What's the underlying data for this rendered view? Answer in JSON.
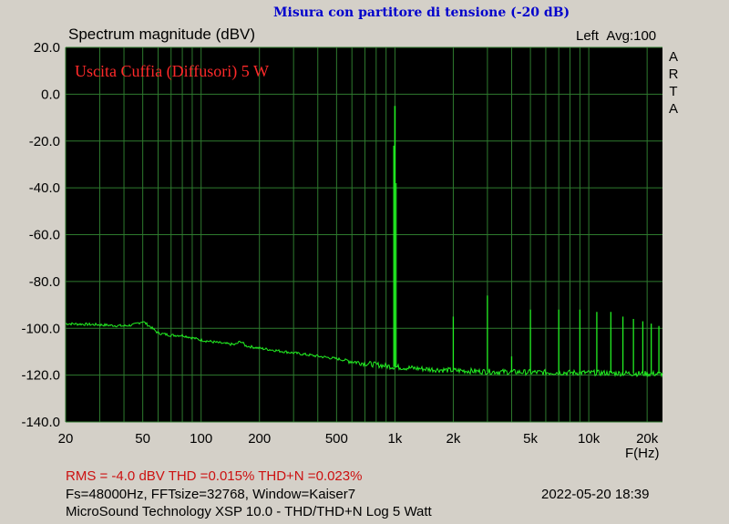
{
  "header": {
    "title": "Misura con partitore di tensione (-20 dB)",
    "y_axis_title": "Spectrum magnitude (dBV)",
    "channel": "Left",
    "averaging": "Avg:100",
    "brand_vertical": "ARTA"
  },
  "legend_text": "Uscita Cuffia (Diffusori) 5 W",
  "footer": {
    "measurements": "RMS =   -4.0 dBV   THD =0.015%   THD+N =0.023%",
    "settings": "Fs=48000Hz, FFTsize=32768, Window=Kaiser7",
    "timestamp": "2022-05-20  18:39",
    "device": "MicroSound Technology XSP 10.0 - THD/THD+N Log 5 Watt"
  },
  "colors": {
    "plot_background": "#000000",
    "grid": "#2e7a2e",
    "trace": "#22ee22",
    "title": "#0000cc",
    "legend": "#ff2a2a",
    "info_red": "#cc1111"
  },
  "chart_data": {
    "type": "line",
    "title": "Misura con partitore di tensione (-20 dB)",
    "ylabel": "Spectrum magnitude (dBV)",
    "xlabel": "F(Hz)",
    "x_scale": "log",
    "xlim": [
      20,
      24000
    ],
    "ylim": [
      -140,
      20
    ],
    "y_ticks": [
      20,
      0,
      -20,
      -40,
      -60,
      -80,
      -100,
      -120,
      -140
    ],
    "y_tick_labels": [
      "20.0",
      "0.0",
      "-20.0",
      "-40.0",
      "-60.0",
      "-80.0",
      "-100.0",
      "-120.0",
      "-140.0"
    ],
    "x_ticks": [
      20,
      50,
      100,
      200,
      500,
      1000,
      2000,
      5000,
      10000,
      20000
    ],
    "x_tick_labels": [
      "20",
      "50",
      "100",
      "200",
      "500",
      "1k",
      "2k",
      "5k",
      "10k",
      "20k"
    ],
    "grid": true,
    "series": [
      {
        "name": "Uscita Cuffia (Diffusori) 5 W",
        "noise_floor": [
          [
            20,
            -98
          ],
          [
            30,
            -98.5
          ],
          [
            40,
            -99
          ],
          [
            45,
            -98.5
          ],
          [
            50,
            -97
          ],
          [
            55,
            -99.5
          ],
          [
            60,
            -102
          ],
          [
            70,
            -103
          ],
          [
            80,
            -103
          ],
          [
            100,
            -105
          ],
          [
            130,
            -106.5
          ],
          [
            150,
            -107
          ],
          [
            160,
            -105.5
          ],
          [
            170,
            -107.5
          ],
          [
            200,
            -108.5
          ],
          [
            300,
            -110.5
          ],
          [
            500,
            -113
          ],
          [
            700,
            -115
          ],
          [
            1000,
            -116.5
          ],
          [
            1500,
            -117.5
          ],
          [
            2000,
            -118
          ],
          [
            3000,
            -118.5
          ],
          [
            5000,
            -118.8
          ],
          [
            10000,
            -119
          ],
          [
            24000,
            -119.5
          ]
        ],
        "peaks": [
          {
            "freq": 1000,
            "level": -5
          },
          {
            "freq": 2000,
            "level": -95
          },
          {
            "freq": 3000,
            "level": -86
          },
          {
            "freq": 4000,
            "level": -112
          },
          {
            "freq": 5000,
            "level": -92
          },
          {
            "freq": 7000,
            "level": -92
          },
          {
            "freq": 9000,
            "level": -92
          },
          {
            "freq": 11000,
            "level": -93
          },
          {
            "freq": 13000,
            "level": -93
          },
          {
            "freq": 15000,
            "level": -95
          },
          {
            "freq": 17000,
            "level": -96
          },
          {
            "freq": 19000,
            "level": -97
          },
          {
            "freq": 21000,
            "level": -98
          },
          {
            "freq": 23000,
            "level": -99
          }
        ]
      }
    ]
  }
}
